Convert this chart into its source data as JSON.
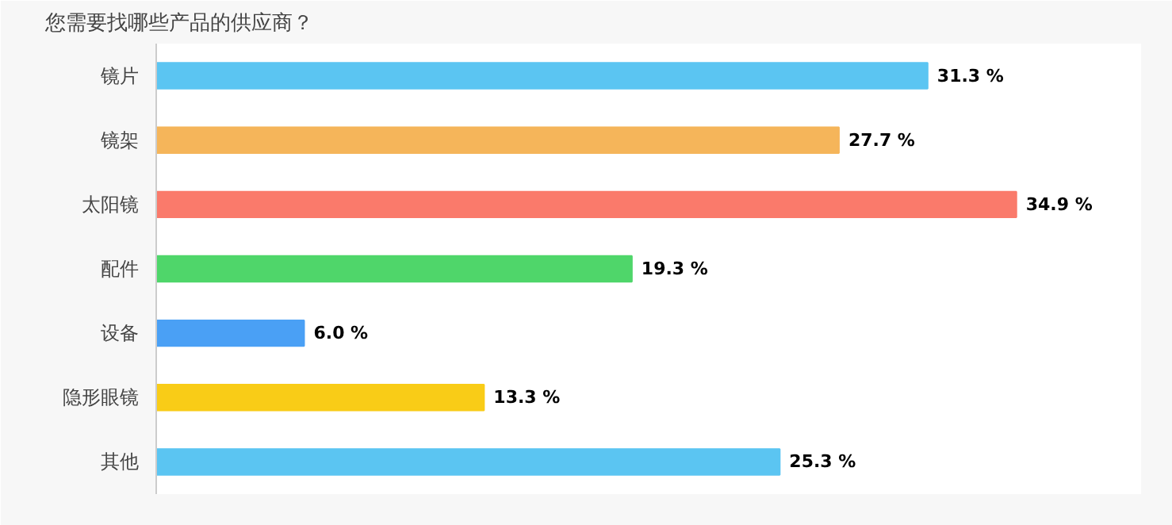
{
  "chart_data": {
    "type": "bar",
    "orientation": "horizontal",
    "title": "您需要找哪些产品的供应商？",
    "categories": [
      "镜片",
      "镜架",
      "太阳镜",
      "配件",
      "设备",
      "隐形眼镜",
      "其他"
    ],
    "values": [
      31.3,
      27.7,
      34.9,
      19.3,
      6.0,
      13.3,
      25.3
    ],
    "colors": [
      "#5bc5f2",
      "#f5b55a",
      "#fa7a6b",
      "#4fd66a",
      "#4aa0f5",
      "#f9cc17",
      "#5bc5f2"
    ],
    "value_labels": [
      "31.3 %",
      "27.7 %",
      "34.9 %",
      "19.3 %",
      "6.0 %",
      "13.3 %",
      "25.3 %"
    ],
    "grid": false
  }
}
